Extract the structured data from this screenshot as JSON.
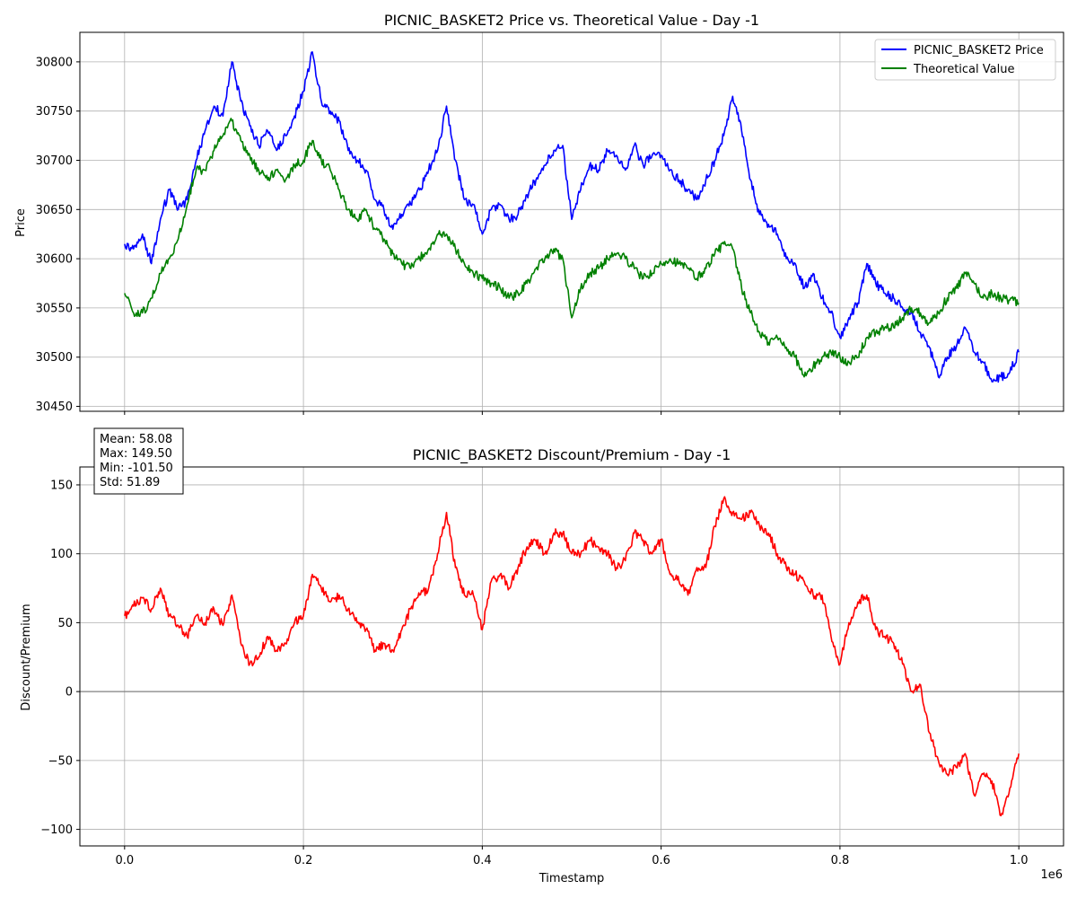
{
  "chart_data": [
    {
      "type": "line",
      "title": "PICNIC_BASKET2 Price vs. Theoretical Value - Day -1",
      "xlabel": "",
      "ylabel": "Price",
      "xlim": [
        -50000,
        1050000
      ],
      "ylim": [
        30445,
        30830
      ],
      "yticks": [
        30450,
        30500,
        30550,
        30600,
        30650,
        30700,
        30750,
        30800
      ],
      "xticks": [
        0,
        200000,
        400000,
        600000,
        800000,
        1000000
      ],
      "grid": true,
      "legend": "top-right",
      "series": [
        {
          "name": "PICNIC_BASKET2 Price",
          "color": "#0000ff",
          "x": [
            0,
            10000,
            20000,
            30000,
            40000,
            50000,
            60000,
            70000,
            80000,
            90000,
            100000,
            110000,
            120000,
            130000,
            140000,
            150000,
            160000,
            170000,
            180000,
            190000,
            200000,
            210000,
            220000,
            230000,
            240000,
            250000,
            260000,
            270000,
            280000,
            290000,
            300000,
            310000,
            320000,
            330000,
            340000,
            350000,
            360000,
            370000,
            380000,
            390000,
            400000,
            410000,
            420000,
            430000,
            440000,
            450000,
            460000,
            470000,
            480000,
            490000,
            500000,
            510000,
            520000,
            530000,
            540000,
            550000,
            560000,
            570000,
            580000,
            590000,
            600000,
            610000,
            620000,
            630000,
            640000,
            650000,
            660000,
            670000,
            680000,
            690000,
            700000,
            710000,
            720000,
            730000,
            740000,
            750000,
            760000,
            770000,
            780000,
            790000,
            800000,
            810000,
            820000,
            830000,
            840000,
            850000,
            860000,
            870000,
            880000,
            890000,
            900000,
            910000,
            920000,
            930000,
            940000,
            950000,
            960000,
            970000,
            980000,
            990000,
            1000000
          ],
          "values": [
            30615,
            30610,
            30625,
            30595,
            30640,
            30670,
            30650,
            30660,
            30700,
            30730,
            30755,
            30745,
            30800,
            30760,
            30735,
            30715,
            30730,
            30710,
            30725,
            30745,
            30770,
            30810,
            30760,
            30750,
            30740,
            30710,
            30700,
            30690,
            30660,
            30650,
            30630,
            30645,
            30655,
            30670,
            30690,
            30710,
            30755,
            30700,
            30660,
            30655,
            30625,
            30650,
            30655,
            30640,
            30645,
            30665,
            30680,
            30695,
            30710,
            30715,
            30640,
            30670,
            30695,
            30690,
            30710,
            30705,
            30690,
            30715,
            30695,
            30705,
            30705,
            30690,
            30680,
            30670,
            30660,
            30680,
            30700,
            30725,
            30765,
            30730,
            30680,
            30645,
            30635,
            30625,
            30600,
            30595,
            30570,
            30585,
            30560,
            30545,
            30520,
            30540,
            30555,
            30595,
            30575,
            30565,
            30560,
            30550,
            30545,
            30525,
            30510,
            30480,
            30500,
            30510,
            30530,
            30505,
            30495,
            30475,
            30480,
            30485,
            30505
          ]
        },
        {
          "name": "Theoretical Value",
          "color": "#008000",
          "x": [
            0,
            10000,
            20000,
            30000,
            40000,
            50000,
            60000,
            70000,
            80000,
            90000,
            100000,
            110000,
            120000,
            130000,
            140000,
            150000,
            160000,
            170000,
            180000,
            190000,
            200000,
            210000,
            220000,
            230000,
            240000,
            250000,
            260000,
            270000,
            280000,
            290000,
            300000,
            310000,
            320000,
            330000,
            340000,
            350000,
            360000,
            370000,
            380000,
            390000,
            400000,
            410000,
            420000,
            430000,
            440000,
            450000,
            460000,
            470000,
            480000,
            490000,
            500000,
            510000,
            520000,
            530000,
            540000,
            550000,
            560000,
            570000,
            580000,
            590000,
            600000,
            610000,
            620000,
            630000,
            640000,
            650000,
            660000,
            670000,
            680000,
            690000,
            700000,
            710000,
            720000,
            730000,
            740000,
            750000,
            760000,
            770000,
            780000,
            790000,
            800000,
            810000,
            820000,
            830000,
            840000,
            850000,
            860000,
            870000,
            880000,
            890000,
            900000,
            910000,
            920000,
            930000,
            940000,
            950000,
            960000,
            970000,
            980000,
            990000,
            1000000
          ],
          "values": [
            30565,
            30545,
            30545,
            30560,
            30585,
            30600,
            30620,
            30655,
            30690,
            30690,
            30710,
            30725,
            30740,
            30720,
            30705,
            30690,
            30680,
            30690,
            30680,
            30695,
            30700,
            30720,
            30700,
            30690,
            30670,
            30650,
            30640,
            30650,
            30630,
            30620,
            30605,
            30595,
            30590,
            30600,
            30610,
            30625,
            30625,
            30610,
            30595,
            30585,
            30580,
            30575,
            30570,
            30560,
            30565,
            30575,
            30590,
            30600,
            30610,
            30600,
            30540,
            30570,
            30585,
            30590,
            30600,
            30605,
            30600,
            30590,
            30580,
            30585,
            30595,
            30600,
            30595,
            30590,
            30580,
            30590,
            30605,
            30615,
            30610,
            30570,
            30545,
            30525,
            30515,
            30520,
            30510,
            30500,
            30480,
            30490,
            30500,
            30505,
            30500,
            30495,
            30500,
            30520,
            30525,
            30530,
            30530,
            30540,
            30550,
            30545,
            30535,
            30545,
            30560,
            30570,
            30585,
            30575,
            30560,
            30565,
            30560,
            30558,
            30555
          ]
        }
      ]
    },
    {
      "type": "line",
      "title": "PICNIC_BASKET2 Discount/Premium - Day -1",
      "xlabel": "Timestamp",
      "ylabel": "Discount/Premium",
      "x_multiplier_label": "1e6",
      "xlim": [
        -50000,
        1050000
      ],
      "ylim": [
        -112,
        163
      ],
      "yticks": [
        -100,
        -50,
        0,
        50,
        100,
        150
      ],
      "xticks": [
        0,
        200000,
        400000,
        600000,
        800000,
        1000000
      ],
      "xtick_labels": [
        "0.0",
        "0.2",
        "0.4",
        "0.6",
        "0.8",
        "1.0"
      ],
      "grid": true,
      "reference_line": 0,
      "stats": [
        "Mean: 58.08",
        "Max: 149.50",
        "Min: -101.50",
        "Std: 51.89"
      ],
      "series": [
        {
          "name": "",
          "color": "#ff0000",
          "x": [
            0,
            10000,
            20000,
            30000,
            40000,
            50000,
            60000,
            70000,
            80000,
            90000,
            100000,
            110000,
            120000,
            130000,
            140000,
            150000,
            160000,
            170000,
            180000,
            190000,
            200000,
            210000,
            220000,
            230000,
            240000,
            250000,
            260000,
            270000,
            280000,
            290000,
            300000,
            310000,
            320000,
            330000,
            340000,
            350000,
            360000,
            370000,
            380000,
            390000,
            400000,
            410000,
            420000,
            430000,
            440000,
            450000,
            460000,
            470000,
            480000,
            490000,
            500000,
            510000,
            520000,
            530000,
            540000,
            550000,
            560000,
            570000,
            580000,
            590000,
            600000,
            610000,
            620000,
            630000,
            640000,
            650000,
            660000,
            670000,
            680000,
            690000,
            700000,
            710000,
            720000,
            730000,
            740000,
            750000,
            760000,
            770000,
            780000,
            790000,
            800000,
            810000,
            820000,
            830000,
            840000,
            850000,
            860000,
            870000,
            880000,
            890000,
            900000,
            910000,
            920000,
            930000,
            940000,
            950000,
            960000,
            970000,
            980000,
            990000,
            1000000
          ],
          "values": [
            55,
            62,
            68,
            60,
            75,
            55,
            48,
            40,
            55,
            50,
            60,
            48,
            70,
            35,
            20,
            25,
            40,
            30,
            35,
            50,
            55,
            85,
            75,
            65,
            70,
            60,
            50,
            45,
            30,
            35,
            30,
            45,
            60,
            70,
            75,
            100,
            130,
            90,
            70,
            70,
            45,
            80,
            85,
            75,
            90,
            105,
            110,
            100,
            115,
            115,
            100,
            100,
            110,
            105,
            100,
            90,
            95,
            115,
            110,
            100,
            110,
            85,
            80,
            70,
            90,
            90,
            120,
            140,
            130,
            125,
            130,
            120,
            115,
            100,
            90,
            85,
            80,
            70,
            70,
            40,
            20,
            50,
            65,
            70,
            45,
            40,
            35,
            20,
            0,
            5,
            -30,
            -50,
            -60,
            -55,
            -45,
            -75,
            -60,
            -65,
            -90,
            -70,
            -45
          ]
        }
      ]
    }
  ]
}
